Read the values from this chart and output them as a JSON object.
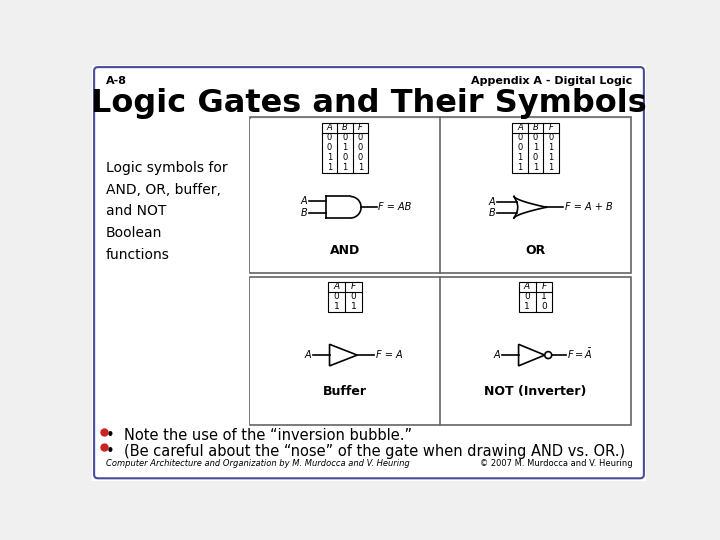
{
  "slide_bg": "#f0f0f0",
  "border_outer_color": "#8B3A3A",
  "border_inner_color": "#4a4a9a",
  "inner_bg": "#ffffff",
  "header_left": "A-8",
  "header_right": "Appendix A - Digital Logic",
  "title": "Logic Gates and Their Symbols",
  "side_text": "Logic symbols for\nAND, OR, buffer,\nand NOT\nBoolean\nfunctions",
  "bullet1": "•  Note the use of the “inversion bubble.”",
  "bullet2": "•  (Be careful about the “nose” of the gate when drawing AND vs. OR.)",
  "footer_left": "Computer Architecture and Organization by M. Murdocca and V. Heuring",
  "footer_right": "© 2007 M. Murdocca and V. Heuring",
  "box_bg": "#f0f0f0",
  "box_border": "#666666",
  "table_bg": "#ffffff"
}
